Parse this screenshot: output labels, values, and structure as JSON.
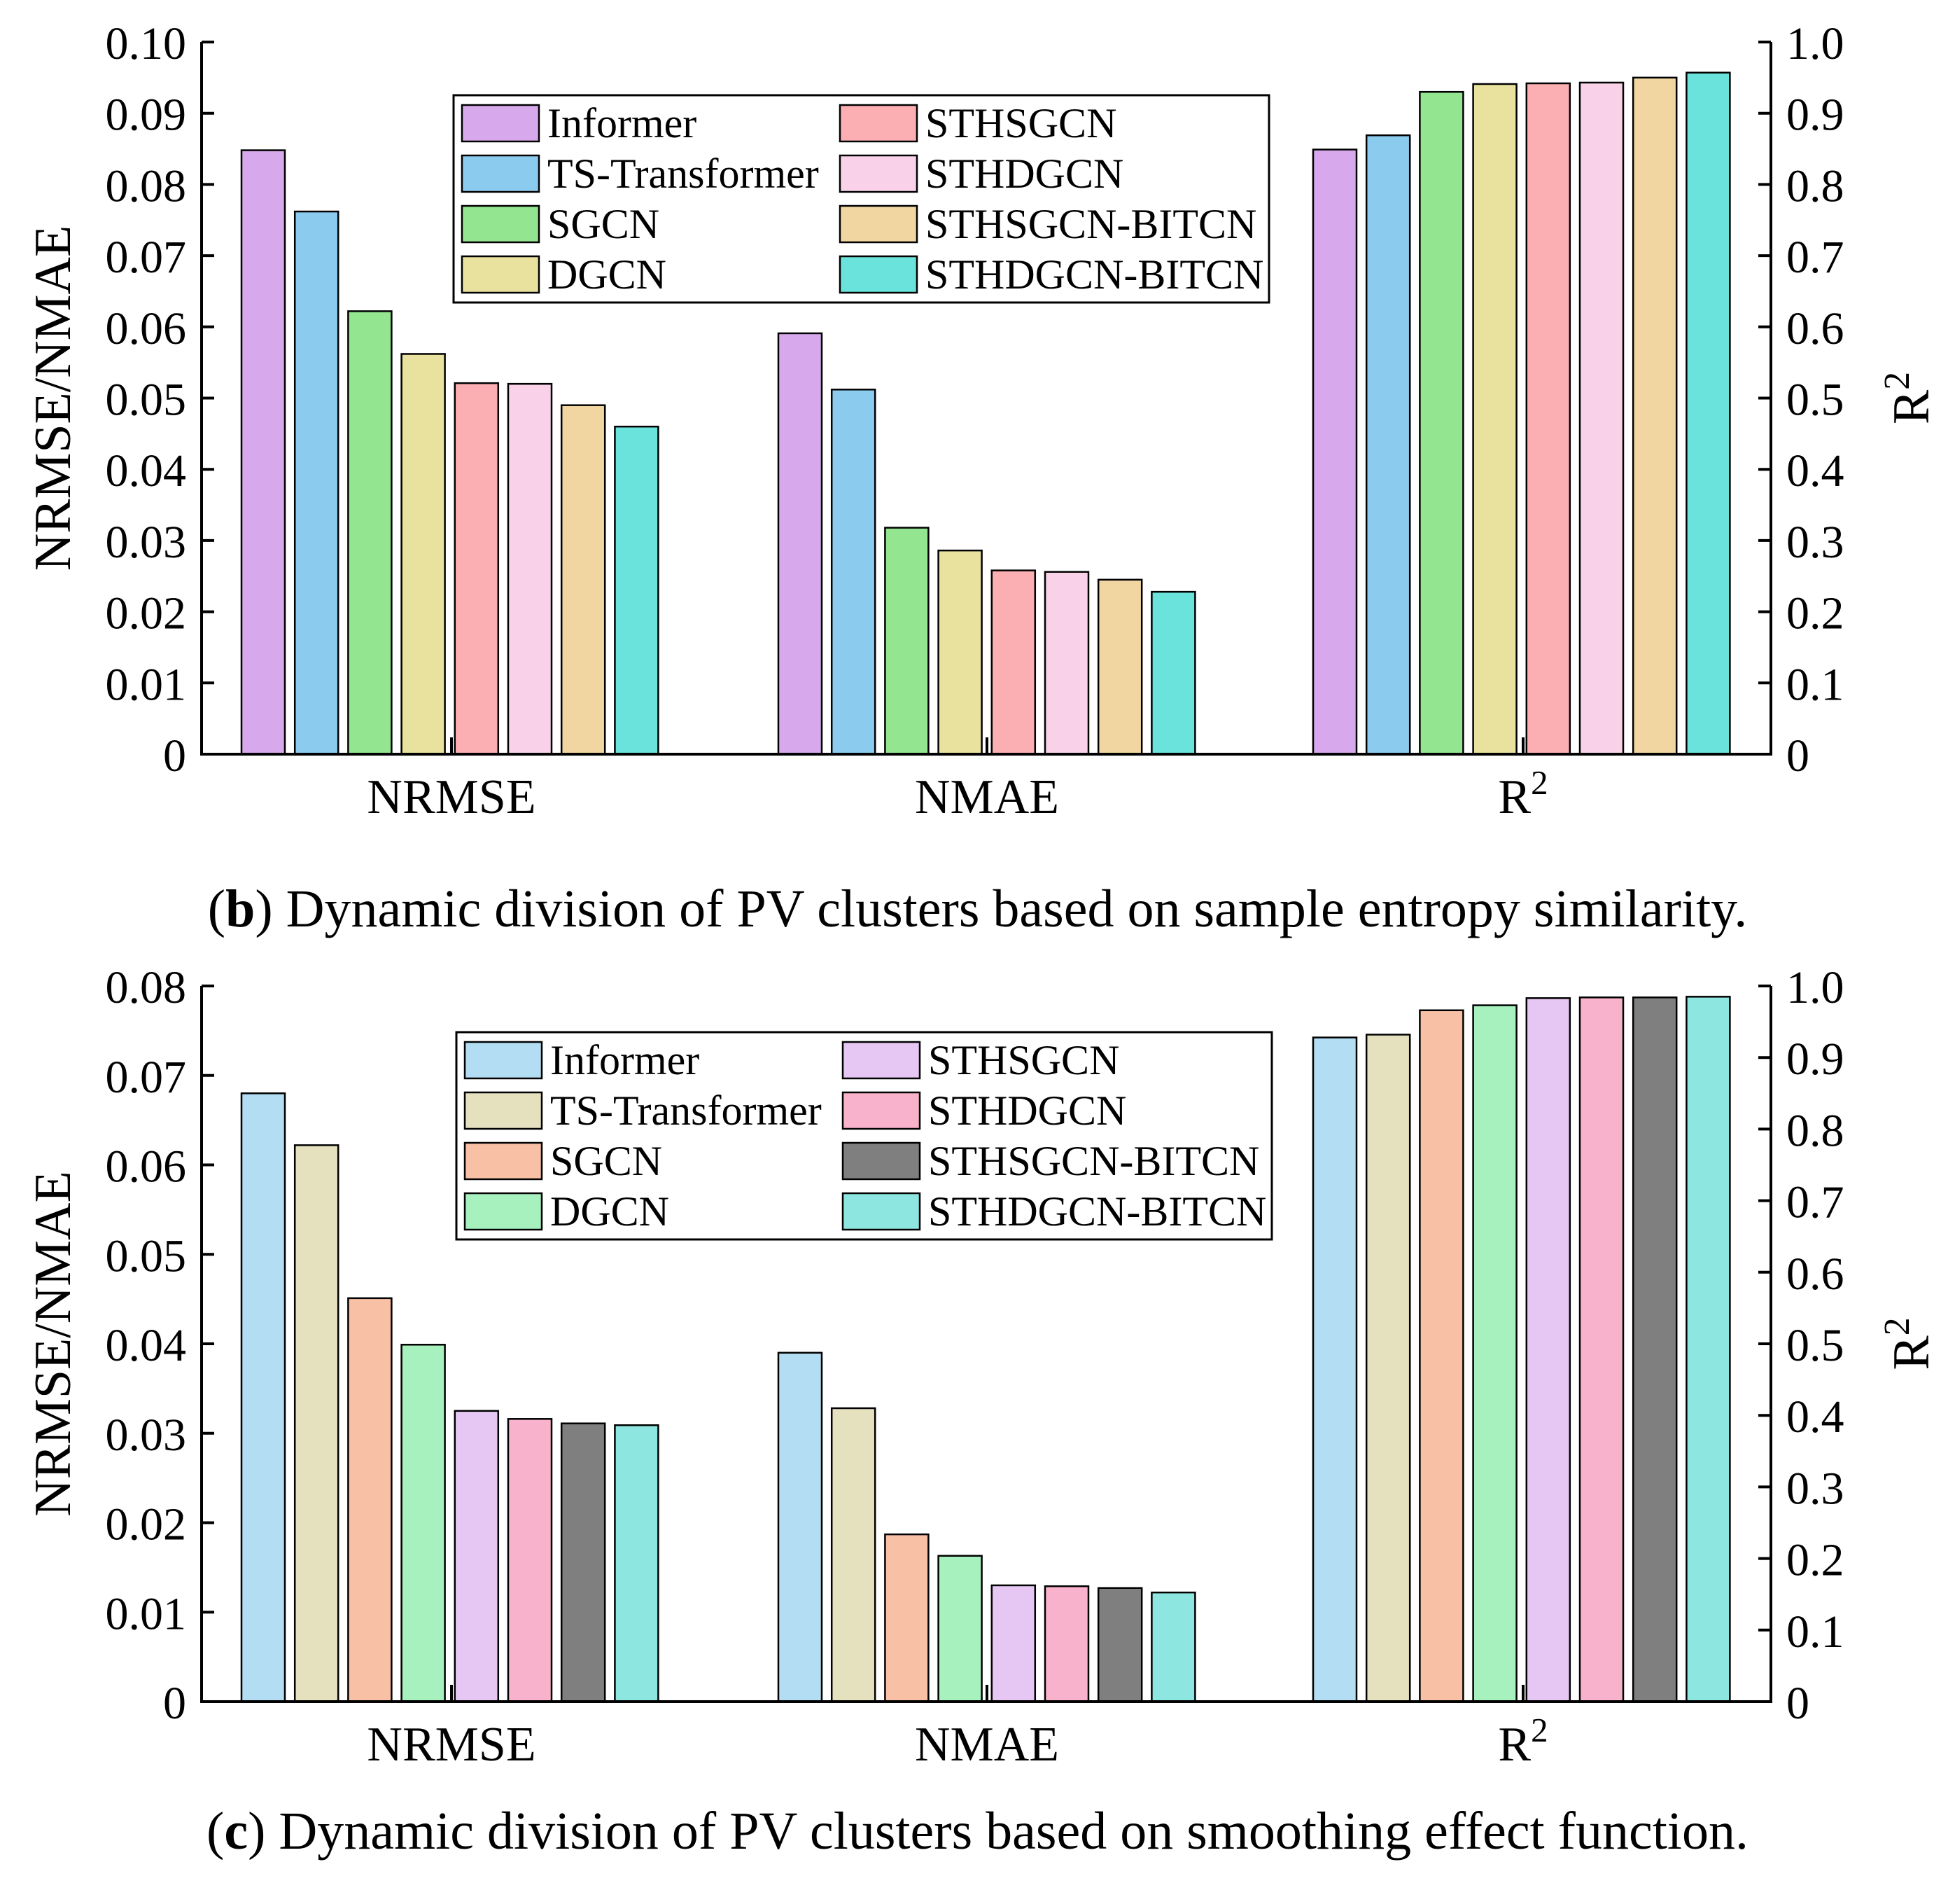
{
  "chart_data": [
    {
      "type": "bar",
      "panel": "b",
      "caption": {
        "letter": "b",
        "text": "Dynamic division of PV clusters based on sample entropy similarity."
      },
      "categories": [
        "NRMSE",
        "NMAE",
        "R2"
      ],
      "ylabel": "NRMSE/NMAE",
      "ylabel_right": "R2",
      "ylim": [
        0,
        0.1
      ],
      "ylim_right": [
        0,
        1.0
      ],
      "yticks": [
        "0",
        "0.01",
        "0.02",
        "0.03",
        "0.04",
        "0.05",
        "0.06",
        "0.07",
        "0.08",
        "0.09",
        "0.10"
      ],
      "yticks_right": [
        "0",
        "0.1",
        "0.2",
        "0.3",
        "0.4",
        "0.5",
        "0.6",
        "0.7",
        "0.8",
        "0.9",
        "1.0"
      ],
      "legend_position": "top-center",
      "series": [
        {
          "name": "Informer",
          "color": "#D7A9EC",
          "values": [
            0.0848,
            0.0591,
            0.849
          ]
        },
        {
          "name": "TS-Transformer",
          "color": "#8ACBEE",
          "values": [
            0.0762,
            0.0512,
            0.869
          ]
        },
        {
          "name": "SGCN",
          "color": "#93E58F",
          "values": [
            0.0622,
            0.0318,
            0.93
          ]
        },
        {
          "name": "DGCN",
          "color": "#E8E29E",
          "values": [
            0.0562,
            0.0286,
            0.941
          ]
        },
        {
          "name": "STHSGCN",
          "color": "#FBAFB2",
          "values": [
            0.0521,
            0.0258,
            0.942
          ]
        },
        {
          "name": "STHDGCN",
          "color": "#F9D2E9",
          "values": [
            0.052,
            0.0256,
            0.943
          ]
        },
        {
          "name": "STHSGCN-BITCN",
          "color": "#F2D6A2",
          "values": [
            0.049,
            0.0245,
            0.95
          ]
        },
        {
          "name": "STHDGCN-BITCN",
          "color": "#6AE3DC",
          "values": [
            0.046,
            0.0228,
            0.957
          ]
        }
      ]
    },
    {
      "type": "bar",
      "panel": "c",
      "caption": {
        "letter": "c",
        "text": "Dynamic division of PV clusters based on smoothing effect function."
      },
      "categories": [
        "NRMSE",
        "NMAE",
        "R2"
      ],
      "ylabel": "NRMSE/NMAE",
      "ylabel_right": "R2",
      "ylim": [
        0,
        0.08
      ],
      "ylim_right": [
        0,
        1.0
      ],
      "yticks": [
        "0",
        "0.01",
        "0.02",
        "0.03",
        "0.04",
        "0.05",
        "0.06",
        "0.07",
        "0.08"
      ],
      "yticks_right": [
        "0",
        "0.1",
        "0.2",
        "0.3",
        "0.4",
        "0.5",
        "0.6",
        "0.7",
        "0.8",
        "0.9",
        "1.0"
      ],
      "legend_position": "top-center",
      "series": [
        {
          "name": "Informer",
          "color": "#B3DDF2",
          "values": [
            0.068,
            0.039,
            0.928
          ]
        },
        {
          "name": "TS-Transformer",
          "color": "#E5E0BE",
          "values": [
            0.0622,
            0.0328,
            0.932
          ]
        },
        {
          "name": "SGCN",
          "color": "#F8C0A4",
          "values": [
            0.0451,
            0.0187,
            0.966
          ]
        },
        {
          "name": "DGCN",
          "color": "#A6F1BE",
          "values": [
            0.0399,
            0.0163,
            0.973
          ]
        },
        {
          "name": "STHSGCN",
          "color": "#E6C6F2",
          "values": [
            0.0325,
            0.013,
            0.983
          ]
        },
        {
          "name": "STHDGCN",
          "color": "#F9B2CB",
          "values": [
            0.0316,
            0.0129,
            0.984
          ]
        },
        {
          "name": "STHSGCN-BITCN",
          "color": "#7F7F7F",
          "values": [
            0.0311,
            0.0127,
            0.984
          ]
        },
        {
          "name": "STHDGCN-BITCN",
          "color": "#8EE6E0",
          "values": [
            0.0309,
            0.0122,
            0.985
          ]
        }
      ]
    }
  ]
}
